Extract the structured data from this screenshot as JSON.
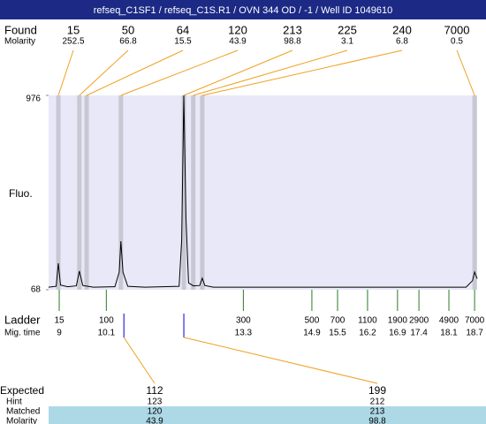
{
  "header": {
    "title": "refseq_C1SF1 / refseq_C1S.R1 / OVN 344 OD / -1 / Well ID 1049610"
  },
  "found": {
    "label": "Found",
    "molarity_label": "Molarity",
    "sizes": [
      15,
      50,
      64,
      120,
      213,
      225,
      240,
      7000
    ],
    "molarity": [
      252.5,
      66.8,
      15.5,
      43.9,
      98.8,
      3.1,
      6.8,
      0.5
    ],
    "times": [
      8.98,
      9.47,
      9.64,
      10.44,
      11.91,
      12.13,
      12.34,
      18.7
    ]
  },
  "chart_data": {
    "type": "line",
    "y_label": "Fluo.",
    "color": "#000000",
    "x": [
      8.75,
      8.93,
      8.98,
      9.03,
      9.2,
      9.4,
      9.47,
      9.55,
      9.64,
      9.8,
      10.3,
      10.4,
      10.44,
      10.49,
      10.6,
      11.0,
      11.8,
      11.86,
      11.91,
      11.96,
      12.02,
      12.13,
      12.28,
      12.34,
      12.4,
      12.6,
      18.5,
      18.65,
      18.7,
      18.76
    ],
    "values": [
      80,
      84,
      192,
      90,
      82,
      86,
      155,
      88,
      85,
      80,
      82,
      150,
      295,
      150,
      84,
      80,
      84,
      300,
      976,
      400,
      100,
      86,
      88,
      122,
      88,
      80,
      80,
      110,
      151,
      120
    ],
    "xlim": [
      8.752,
      18.76
    ],
    "ylim": [
      68,
      976
    ],
    "yticks": [
      68,
      976
    ]
  },
  "ladder": {
    "label": "Ladder",
    "time_label": "Mig. time",
    "sizes": [
      15,
      100,
      300,
      500,
      700,
      1100,
      1900,
      2900,
      4900,
      7000
    ],
    "times": [
      9,
      10.1,
      13.3,
      14.9,
      15.5,
      16.2,
      16.9,
      17.4,
      18.1,
      18.7
    ]
  },
  "expected": {
    "labels": [
      "Expected",
      "Hint",
      "Matched",
      "Molarity"
    ],
    "times": [
      10.51,
      11.91
    ],
    "rows": [
      [
        112,
        199
      ],
      [
        123,
        212
      ],
      [
        120,
        213
      ],
      [
        43.9,
        98.8
      ]
    ]
  }
}
